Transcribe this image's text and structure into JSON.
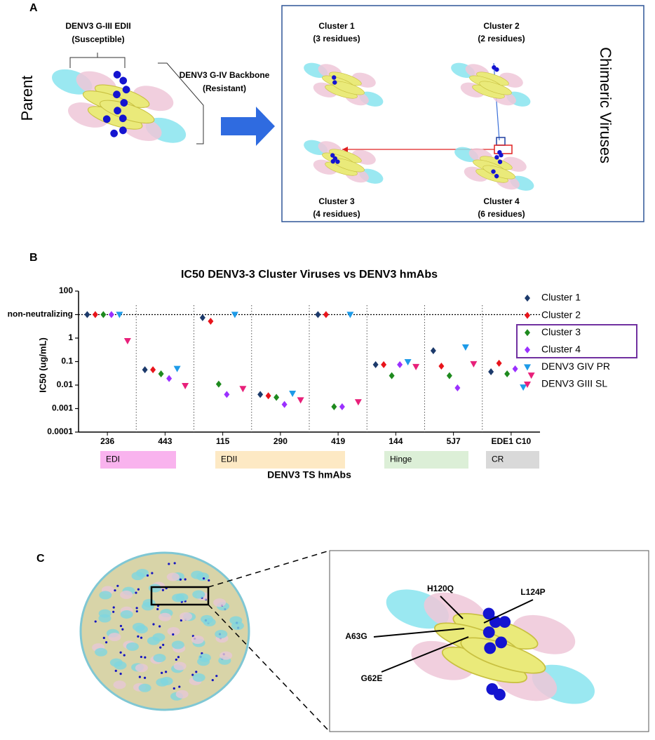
{
  "panel_a": {
    "label": "A",
    "parent_label": "Parent",
    "chimeric_label": "Chimeric Viruses",
    "edii_title": "DENV3 G-III EDII",
    "edii_note": "(Susceptible)",
    "backbone_title": "DENV3 G-IV Backbone",
    "backbone_note": "(Resistant)",
    "clusters": [
      {
        "name": "Cluster 1",
        "residues": "(3 residues)"
      },
      {
        "name": "Cluster 2",
        "residues": "(2 residues)"
      },
      {
        "name": "Cluster 3",
        "residues": "(4 residues)"
      },
      {
        "name": "Cluster 4",
        "residues": "(6 residues)"
      }
    ]
  },
  "panel_b_label": "B",
  "chart_data": {
    "type": "scatter",
    "title": "IC50 DENV3-3 Cluster Viruses vs DENV3 hmAbs",
    "x_label": "DENV3 TS hmAbs",
    "y_label": "IC50 (ug/mL)",
    "yscale": "log",
    "ylim": [
      0.0001,
      100
    ],
    "yticks": [
      0.0001,
      0.001,
      0.01,
      0.1,
      1,
      {
        "value": 10,
        "label": "non-neutralizing"
      },
      100
    ],
    "reference_line": {
      "value": 10,
      "style": "dotted"
    },
    "categories": [
      "236",
      "443",
      "115",
      "290",
      "419",
      "144",
      "5J7",
      "EDE1 C10"
    ],
    "series": [
      {
        "name": "Cluster 1",
        "color": "#1c3a6b",
        "marker": "diamond",
        "values": [
          10,
          0.045,
          7.4,
          0.004,
          10,
          0.074,
          0.29,
          0.037
        ]
      },
      {
        "name": "Cluster 2",
        "color": "#e8141b",
        "marker": "diamond",
        "values": [
          10,
          0.045,
          5.2,
          0.0035,
          10,
          0.074,
          0.064,
          0.085
        ]
      },
      {
        "name": "Cluster 3",
        "color": "#1e8a1e",
        "marker": "diamond",
        "values": [
          10,
          0.03,
          0.011,
          0.003,
          0.0012,
          0.025,
          0.025,
          0.03
        ]
      },
      {
        "name": "Cluster 4",
        "color": "#9b30ff",
        "marker": "diamond",
        "values": [
          10,
          0.019,
          0.004,
          0.0015,
          0.0012,
          0.074,
          0.0076,
          0.049
        ]
      },
      {
        "name": "DENV3 GIV PR",
        "color": "#1e9be8",
        "marker": "triangle-down",
        "values": [
          10,
          0.05,
          10,
          0.0044,
          10,
          0.097,
          0.41,
          0.0081
        ]
      },
      {
        "name": "DENV3 GIII SL",
        "color": "#e8207a",
        "marker": "triangle-down",
        "values": [
          0.76,
          0.0093,
          0.007,
          0.0023,
          0.0019,
          0.06,
          0.079,
          0.026
        ]
      }
    ],
    "domains": [
      {
        "label": "EDI",
        "color": "#f9b3ee"
      },
      {
        "label": "EDII",
        "color": "#fde9c4"
      },
      {
        "label": "Hinge",
        "color": "#dcefd7"
      },
      {
        "label": "CR",
        "color": "#d9d9d9"
      }
    ]
  },
  "panel_c": {
    "label": "C",
    "mutations": [
      "H120Q",
      "L124P",
      "A63G",
      "G62E"
    ]
  }
}
